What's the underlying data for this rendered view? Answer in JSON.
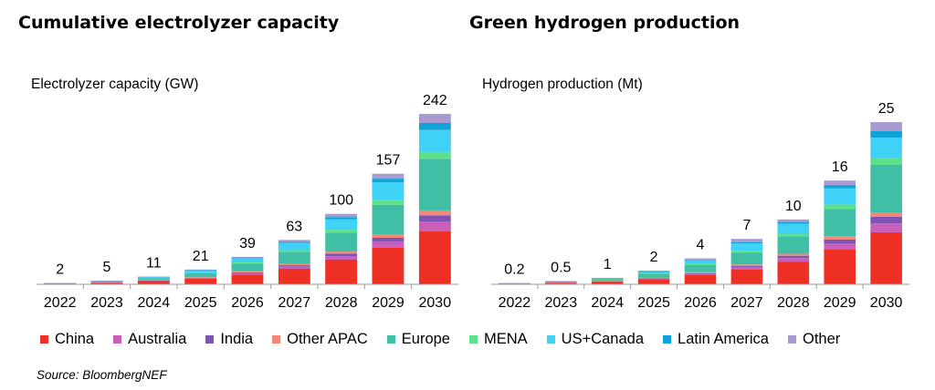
{
  "colors": {
    "China": "#ee3124",
    "Australia": "#c95fb9",
    "India": "#7f52b6",
    "Other APAC": "#f28779",
    "Europe": "#40bfa6",
    "MENA": "#5ee08a",
    "US+Canada": "#3fd1f6",
    "Latin America": "#0ea3d9",
    "Other": "#a99ad1"
  },
  "legend": [
    "China",
    "Australia",
    "India",
    "Other APAC",
    "Europe",
    "MENA",
    "US+Canada",
    "Latin America",
    "Other"
  ],
  "source": "Source: BloombergNEF",
  "chart_data": [
    {
      "type": "bar",
      "stacked": true,
      "title": "Cumulative electrolyzer capacity",
      "ylabel": "Electrolyzer capacity (GW)",
      "xlabel": "",
      "ylim": [
        0,
        242
      ],
      "categories": [
        "2022",
        "2023",
        "2024",
        "2025",
        "2026",
        "2027",
        "2028",
        "2029",
        "2030"
      ],
      "totals_labels": [
        "2",
        "5",
        "11",
        "21",
        "39",
        "63",
        "100",
        "157",
        "242"
      ],
      "series": [
        {
          "name": "China",
          "values": [
            1.2,
            2.5,
            5,
            8,
            14,
            22,
            35,
            52,
            76
          ]
        },
        {
          "name": "Australia",
          "values": [
            0,
            0.1,
            0.3,
            0.8,
            2,
            3,
            5,
            9,
            13
          ]
        },
        {
          "name": "India",
          "values": [
            0,
            0,
            0.3,
            0.6,
            1,
            2,
            3.5,
            5,
            9
          ]
        },
        {
          "name": "Other APAC",
          "values": [
            0,
            0.2,
            0.4,
            0.7,
            1.5,
            2,
            3,
            5,
            7
          ]
        },
        {
          "name": "Europe",
          "values": [
            0.6,
            1.4,
            3,
            6,
            11,
            17,
            27,
            42,
            73
          ]
        },
        {
          "name": "MENA",
          "values": [
            0,
            0,
            0.2,
            0.6,
            1.5,
            2.5,
            4,
            7,
            10
          ]
        },
        {
          "name": "US+Canada",
          "values": [
            0.1,
            0.4,
            1.2,
            3,
            6,
            10,
            15,
            25,
            31
          ]
        },
        {
          "name": "Latin America",
          "values": [
            0,
            0.1,
            0.3,
            0.5,
            1,
            2,
            3,
            5,
            10
          ]
        },
        {
          "name": "Other",
          "values": [
            0.1,
            0.3,
            0.3,
            0.8,
            1,
            2.5,
            4.5,
            7,
            13
          ]
        }
      ]
    },
    {
      "type": "bar",
      "stacked": true,
      "title": "Green hydrogen production",
      "ylabel": "Hydrogen production (Mt)",
      "xlabel": "",
      "ylim": [
        0,
        25
      ],
      "categories": [
        "2022",
        "2023",
        "2024",
        "2025",
        "2026",
        "2027",
        "2028",
        "2029",
        "2030"
      ],
      "totals_labels": [
        "0.2",
        "0.5",
        "1",
        "2",
        "4",
        "7",
        "10",
        "16",
        "25"
      ],
      "series": [
        {
          "name": "China",
          "values": [
            0.12,
            0.25,
            0.4,
            0.8,
            1.4,
            2.3,
            3.5,
            5.4,
            8
          ]
        },
        {
          "name": "Australia",
          "values": [
            0,
            0.01,
            0.04,
            0.08,
            0.2,
            0.35,
            0.55,
            0.9,
            1.4
          ]
        },
        {
          "name": "India",
          "values": [
            0,
            0,
            0.03,
            0.06,
            0.1,
            0.2,
            0.35,
            0.6,
            1
          ]
        },
        {
          "name": "Other APAC",
          "values": [
            0,
            0.02,
            0.04,
            0.07,
            0.15,
            0.2,
            0.3,
            0.5,
            0.7
          ]
        },
        {
          "name": "Europe",
          "values": [
            0.06,
            0.14,
            0.3,
            0.6,
            1.1,
            1.8,
            2.7,
            4.2,
            7.3
          ]
        },
        {
          "name": "MENA",
          "values": [
            0,
            0,
            0.02,
            0.06,
            0.15,
            0.25,
            0.4,
            0.7,
            1
          ]
        },
        {
          "name": "US+Canada",
          "values": [
            0.01,
            0.04,
            0.12,
            0.3,
            0.6,
            1.2,
            1.5,
            2.5,
            3.2
          ]
        },
        {
          "name": "Latin America",
          "values": [
            0,
            0.01,
            0.03,
            0.05,
            0.1,
            0.2,
            0.3,
            0.5,
            1
          ]
        },
        {
          "name": "Other",
          "values": [
            0.01,
            0.03,
            0.02,
            0.08,
            0.2,
            0.5,
            0.4,
            0.7,
            1.4
          ]
        }
      ]
    }
  ]
}
